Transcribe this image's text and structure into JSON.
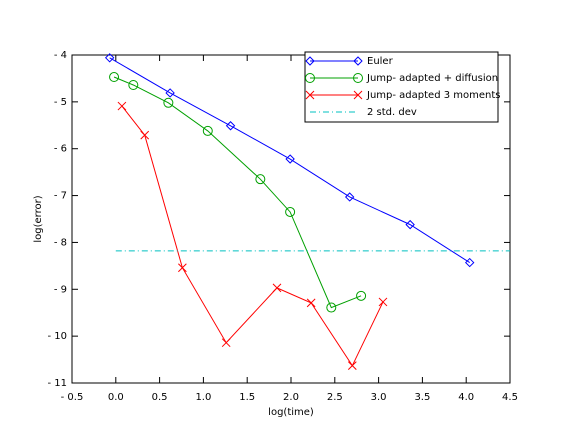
{
  "chart_data": {
    "type": "line",
    "x_label": "log(time)",
    "y_label": "log(error)",
    "xlim": [
      -0.5,
      4.5
    ],
    "ylim": [
      -11,
      -4
    ],
    "xticks": [
      {
        "value": -0.5,
        "label": "- 0.5"
      },
      {
        "value": 0,
        "label": "0.0"
      },
      0.5,
      {
        "value": 1,
        "label": "1.0"
      },
      1.5,
      {
        "value": 2,
        "label": "2.0"
      },
      2.5,
      {
        "value": 3,
        "label": "3.0"
      },
      3.5,
      {
        "value": 4,
        "label": "4.0"
      },
      4.5
    ],
    "yticks": [
      {
        "value": -11,
        "label": "- 11"
      },
      {
        "value": -10,
        "label": "- 10"
      },
      {
        "value": -9,
        "label": "- 9"
      },
      {
        "value": -8,
        "label": "- 8"
      },
      {
        "value": -7,
        "label": "- 7"
      },
      {
        "value": -6,
        "label": "- 6"
      },
      {
        "value": -5,
        "label": "- 5"
      },
      {
        "value": -4,
        "label": "- 4"
      }
    ],
    "legend": "top-right",
    "series": [
      {
        "name": "Euler",
        "color": "#0000ff",
        "marker": "diamond",
        "dash": "solid",
        "x": [
          -0.07,
          0.62,
          1.31,
          1.99,
          2.67,
          3.36,
          4.04
        ],
        "values": [
          -4.06,
          -4.81,
          -5.51,
          -6.22,
          -7.03,
          -7.62,
          -8.43
        ]
      },
      {
        "name": "Jump- adapted + diffusion",
        "color": "#00a000",
        "marker": "circle",
        "dash": "solid",
        "x": [
          -0.02,
          0.2,
          0.6,
          1.05,
          1.65,
          1.99,
          2.46,
          2.8
        ],
        "values": [
          -4.47,
          -4.64,
          -5.02,
          -5.62,
          -6.65,
          -7.35,
          -9.39,
          -9.14
        ]
      },
      {
        "name": "Jump- adapted 3 moments",
        "color": "#ff0000",
        "marker": "x",
        "dash": "solid",
        "x": [
          0.07,
          0.33,
          0.76,
          1.26,
          1.84,
          2.23,
          2.7,
          3.05
        ],
        "values": [
          -5.09,
          -5.71,
          -8.54,
          -10.14,
          -8.97,
          -9.29,
          -10.63,
          -9.27
        ]
      },
      {
        "name": "2 std. dev",
        "color": "#00c0c0",
        "marker": "none",
        "dash": "dashdot",
        "x": [
          0,
          4.5
        ],
        "values": [
          -8.18,
          -8.18
        ]
      }
    ]
  }
}
